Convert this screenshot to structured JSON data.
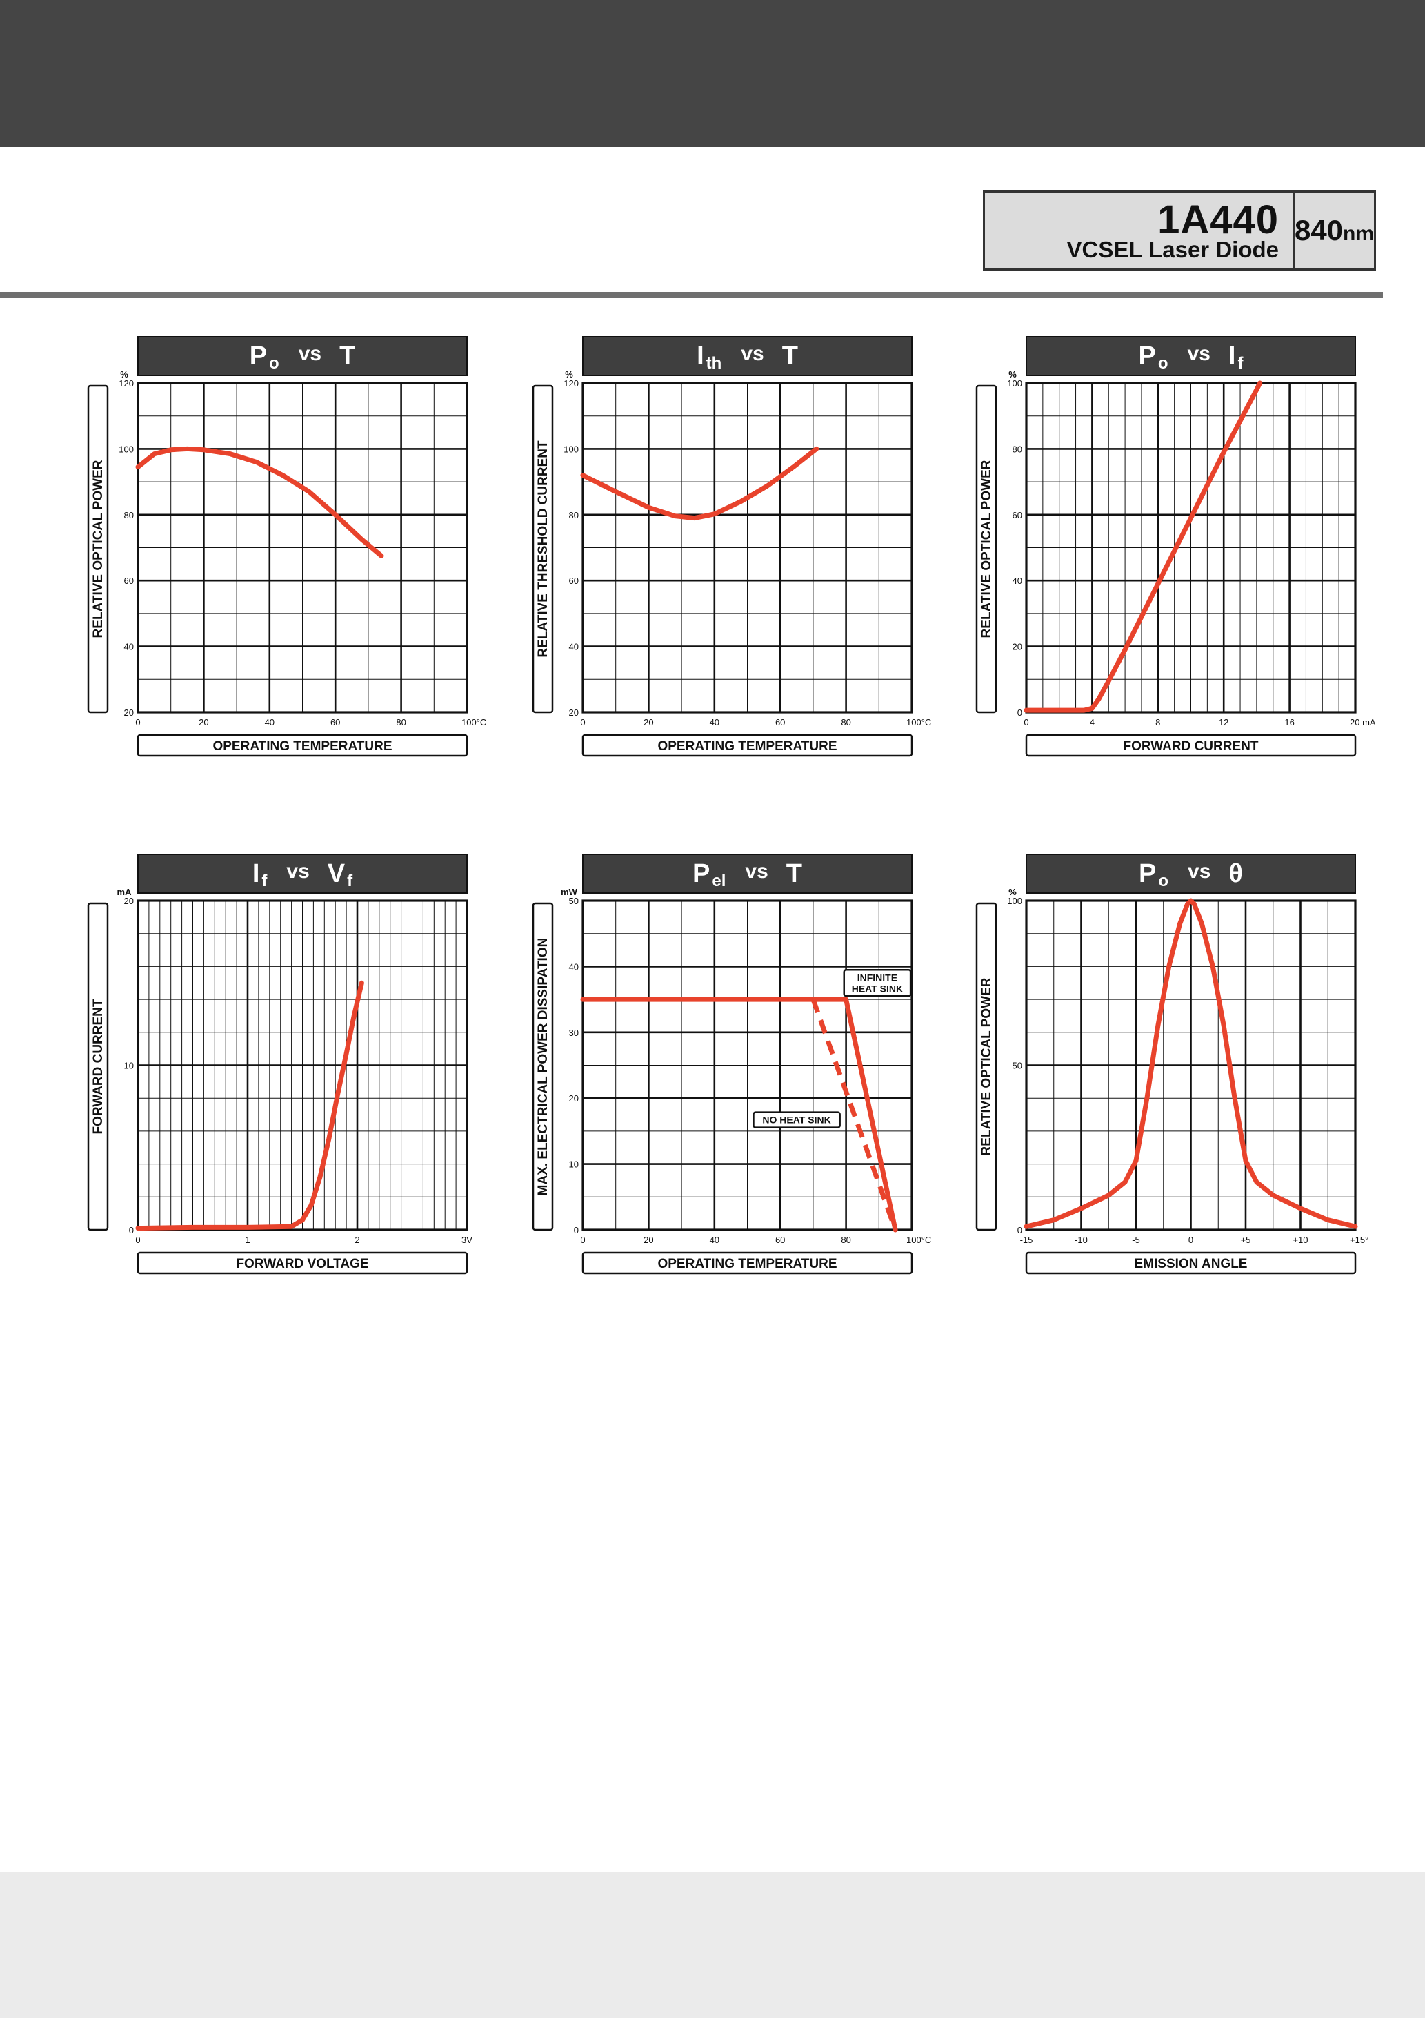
{
  "header": {
    "model": "1A440",
    "type": "VCSEL Laser Diode",
    "wavelength": "840",
    "wavelength_unit": "nm"
  },
  "colors": {
    "curve": "#e8432c",
    "banner": "#3f3f3f",
    "grid": "#111111",
    "header_band": "#454545",
    "footer_band": "#ebebeb",
    "product_box": "#dcdcdc"
  },
  "chart_data": [
    {
      "type": "line",
      "title": {
        "a": "P",
        "as": "o",
        "b": "T",
        "bs": ""
      },
      "xlabel": "OPERATING TEMPERATURE",
      "ylabel": "RELATIVE OPTICAL POWER",
      "y_unit": "%",
      "xlim": [
        0,
        100
      ],
      "ylim": [
        20,
        120
      ],
      "x_ticks": [
        "0",
        "20",
        "40",
        "60",
        "80",
        "100°C"
      ],
      "x_tick_values": [
        0,
        20,
        40,
        60,
        80,
        100
      ],
      "y_ticks": [
        "20",
        "40",
        "60",
        "80",
        "100",
        "120"
      ],
      "y_tick_values": [
        20,
        40,
        60,
        80,
        100,
        120
      ],
      "x_minor": 10,
      "y_minor": 10,
      "grid": true,
      "series": [
        {
          "style": "solid",
          "points": [
            [
              0,
              94.5
            ],
            [
              5,
              98.5
            ],
            [
              10,
              99.7
            ],
            [
              15,
              100
            ],
            [
              20,
              99.7
            ],
            [
              28,
              98.5
            ],
            [
              36,
              96
            ],
            [
              44,
              92
            ],
            [
              52,
              87
            ],
            [
              60,
              80
            ],
            [
              68,
              72.5
            ],
            [
              74,
              67.5
            ]
          ]
        }
      ]
    },
    {
      "type": "line",
      "title": {
        "a": "I",
        "as": "th",
        "b": "T",
        "bs": ""
      },
      "xlabel": "OPERATING TEMPERATURE",
      "ylabel": "RELATIVE THRESHOLD CURRENT",
      "y_unit": "%",
      "xlim": [
        0,
        100
      ],
      "ylim": [
        20,
        120
      ],
      "x_ticks": [
        "0",
        "20",
        "40",
        "60",
        "80",
        "100°C"
      ],
      "x_tick_values": [
        0,
        20,
        40,
        60,
        80,
        100
      ],
      "y_ticks": [
        "20",
        "40",
        "60",
        "80",
        "100",
        "120"
      ],
      "y_tick_values": [
        20,
        40,
        60,
        80,
        100,
        120
      ],
      "x_minor": 10,
      "y_minor": 10,
      "grid": true,
      "series": [
        {
          "style": "solid",
          "points": [
            [
              0,
              92
            ],
            [
              10,
              87
            ],
            [
              20,
              82.2
            ],
            [
              28,
              79.6
            ],
            [
              34,
              79
            ],
            [
              40,
              80.2
            ],
            [
              48,
              84
            ],
            [
              56,
              88.7
            ],
            [
              64,
              94.5
            ],
            [
              71,
              100
            ]
          ]
        }
      ]
    },
    {
      "type": "line",
      "title": {
        "a": "P",
        "as": "o",
        "b": "I",
        "bs": "f"
      },
      "xlabel": "FORWARD CURRENT",
      "ylabel": "RELATIVE OPTICAL POWER",
      "y_unit": "%",
      "xlim": [
        0,
        20
      ],
      "ylim": [
        0,
        100
      ],
      "x_ticks": [
        "0",
        "4",
        "8",
        "12",
        "16",
        "20 mA"
      ],
      "x_tick_values": [
        0,
        4,
        8,
        12,
        16,
        20
      ],
      "y_ticks": [
        "0",
        "20",
        "40",
        "60",
        "80",
        "100"
      ],
      "y_tick_values": [
        0,
        20,
        40,
        60,
        80,
        100
      ],
      "x_minor": 1,
      "y_minor": 10,
      "grid": true,
      "series": [
        {
          "style": "solid",
          "points": [
            [
              0,
              0.6
            ],
            [
              2,
              0.6
            ],
            [
              3.5,
              0.6
            ],
            [
              4,
              1.2
            ],
            [
              4.4,
              4
            ],
            [
              5,
              9.5
            ],
            [
              6,
              19
            ],
            [
              8,
              39
            ],
            [
              10,
              59
            ],
            [
              12,
              79
            ],
            [
              14,
              98
            ],
            [
              14.2,
              100
            ]
          ]
        }
      ]
    },
    {
      "type": "line",
      "title": {
        "a": "I",
        "as": "f",
        "b": "V",
        "bs": "f"
      },
      "xlabel": "FORWARD VOLTAGE",
      "ylabel": "FORWARD CURRENT",
      "y_unit": "mA",
      "xlim": [
        0,
        3
      ],
      "ylim": [
        0,
        20
      ],
      "x_ticks": [
        "0",
        "1",
        "2",
        "3V"
      ],
      "x_tick_values": [
        0,
        1,
        2,
        3
      ],
      "y_ticks": [
        "0",
        "10",
        "20"
      ],
      "y_tick_values": [
        0,
        10,
        20
      ],
      "x_minor": 0.1,
      "y_minor": 2,
      "grid": true,
      "series": [
        {
          "style": "solid",
          "points": [
            [
              0,
              0.1
            ],
            [
              0.5,
              0.15
            ],
            [
              1,
              0.15
            ],
            [
              1.4,
              0.2
            ],
            [
              1.5,
              0.6
            ],
            [
              1.58,
              1.5
            ],
            [
              1.66,
              3.2
            ],
            [
              1.74,
              5.5
            ],
            [
              1.82,
              8.2
            ],
            [
              1.9,
              10.7
            ],
            [
              1.97,
              13
            ],
            [
              2.04,
              15
            ]
          ]
        }
      ]
    },
    {
      "type": "line",
      "title": {
        "a": "P",
        "as": "el",
        "b": "T",
        "bs": ""
      },
      "xlabel": "OPERATING TEMPERATURE",
      "ylabel": "MAX. ELECTRICAL POWER DISSIPATION",
      "y_unit": "mW",
      "xlim": [
        0,
        100
      ],
      "ylim": [
        0,
        50
      ],
      "x_ticks": [
        "0",
        "20",
        "40",
        "60",
        "80",
        "100°C"
      ],
      "x_tick_values": [
        0,
        20,
        40,
        60,
        80,
        100
      ],
      "y_ticks": [
        "0",
        "10",
        "20",
        "30",
        "40",
        "50"
      ],
      "y_tick_values": [
        0,
        10,
        20,
        30,
        40,
        50
      ],
      "x_minor": 10,
      "y_minor": 5,
      "grid": true,
      "series": [
        {
          "style": "solid",
          "points": [
            [
              0,
              35
            ],
            [
              80,
              35
            ],
            [
              95,
              0
            ]
          ]
        },
        {
          "style": "dashed",
          "points": [
            [
              70,
              35
            ],
            [
              95,
              0
            ]
          ]
        }
      ],
      "annotations": [
        {
          "lines": [
            "INFINITE",
            "HEAT SINK"
          ],
          "x": 89.5,
          "y": 37.5
        },
        {
          "lines": [
            "NO HEAT SINK"
          ],
          "x": 65,
          "y": 16.7
        }
      ]
    },
    {
      "type": "line",
      "title": {
        "a": "P",
        "as": "o",
        "b": "θ",
        "bs": ""
      },
      "xlabel": "EMISSION ANGLE",
      "ylabel": "RELATIVE OPTICAL POWER",
      "y_unit": "%",
      "xlim": [
        -15,
        15
      ],
      "ylim": [
        0,
        100
      ],
      "x_ticks": [
        "-15",
        "-10",
        "-5",
        "0",
        "+5",
        "+10",
        "+15°"
      ],
      "x_tick_values": [
        -15,
        -10,
        -5,
        0,
        5,
        10,
        15
      ],
      "y_ticks": [
        "0",
        "50",
        "100"
      ],
      "y_tick_values": [
        0,
        50,
        100
      ],
      "x_minor": 2.5,
      "y_minor": 10,
      "grid": true,
      "series": [
        {
          "style": "solid",
          "points": [
            [
              -15,
              1
            ],
            [
              -12.5,
              3
            ],
            [
              -10,
              6.5
            ],
            [
              -7.5,
              10.5
            ],
            [
              -6,
              14.5
            ],
            [
              -5,
              21
            ],
            [
              -4,
              40
            ],
            [
              -3,
              62
            ],
            [
              -2,
              80
            ],
            [
              -1,
              93
            ],
            [
              -0.3,
              99
            ],
            [
              0,
              100
            ],
            [
              0.3,
              99
            ],
            [
              1,
              93
            ],
            [
              2,
              80
            ],
            [
              3,
              62
            ],
            [
              4,
              40
            ],
            [
              5,
              21
            ],
            [
              6,
              14.5
            ],
            [
              7.5,
              10.5
            ],
            [
              10,
              6.5
            ],
            [
              12.5,
              3
            ],
            [
              15,
              1
            ]
          ]
        }
      ]
    }
  ]
}
